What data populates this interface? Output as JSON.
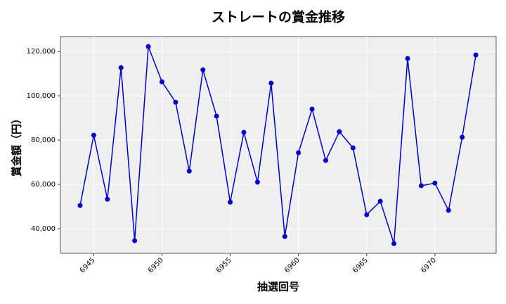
{
  "chart_data": {
    "type": "line",
    "title": "ストレートの賞金推移",
    "x_label": "抽選回号",
    "y_label": "賞金額（円）",
    "x": [
      6944,
      6945,
      6946,
      6947,
      6948,
      6949,
      6950,
      6951,
      6952,
      6953,
      6954,
      6955,
      6956,
      6957,
      6958,
      6959,
      6960,
      6961,
      6962,
      6963,
      6964,
      6965,
      6966,
      6967,
      6968,
      6969,
      6970,
      6971,
      6972,
      6973
    ],
    "series": [
      {
        "name": "賞金",
        "color": "#0000cc",
        "values": [
          50500,
          82200,
          53300,
          112700,
          34600,
          122200,
          106300,
          97100,
          66000,
          111700,
          90800,
          52000,
          83500,
          61000,
          105700,
          36500,
          74300,
          94000,
          70800,
          83800,
          76500,
          46300,
          52400,
          33300,
          116800,
          59400,
          60600,
          48300,
          81300,
          118400
        ]
      }
    ],
    "xlim": [
      6942.56,
      6974.49
    ],
    "xticks": [
      6945,
      6950,
      6955,
      6960,
      6965,
      6970
    ],
    "ylim": [
      28900,
      126700
    ],
    "yticks": [
      {
        "value": 40000,
        "label": "40,000"
      },
      {
        "value": 60000,
        "label": "60,000"
      },
      {
        "value": 80000,
        "label": "80,000"
      },
      {
        "value": 100000,
        "label": "100,000"
      },
      {
        "value": 120000,
        "label": "120,000"
      }
    ],
    "grid": true
  }
}
